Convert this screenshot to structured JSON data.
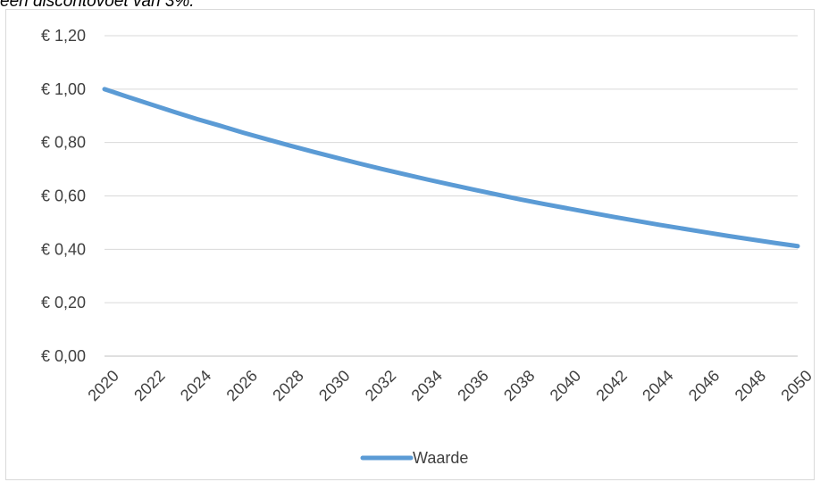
{
  "caption": "een discontovoet van 3%.",
  "chart_data": {
    "type": "line",
    "x": [
      2020,
      2021,
      2022,
      2023,
      2024,
      2025,
      2026,
      2027,
      2028,
      2029,
      2030,
      2031,
      2032,
      2033,
      2034,
      2035,
      2036,
      2037,
      2038,
      2039,
      2040,
      2041,
      2042,
      2043,
      2044,
      2045,
      2046,
      2047,
      2048,
      2049,
      2050
    ],
    "x_tick_labels": [
      "2020",
      "2022",
      "2024",
      "2026",
      "2028",
      "2030",
      "2032",
      "2034",
      "2036",
      "2038",
      "2040",
      "2042",
      "2044",
      "2046",
      "2048",
      "2050"
    ],
    "y_tick_labels": [
      "€ 0,00",
      "€ 0,20",
      "€ 0,40",
      "€ 0,60",
      "€ 0,80",
      "€ 1,00",
      "€ 1,20"
    ],
    "ylim": [
      0,
      1.2
    ],
    "y_step": 0.2,
    "grid": "horizontal",
    "legend_position": "bottom",
    "series": [
      {
        "name": "Waarde",
        "color": "#5b9bd5",
        "values": [
          1.0,
          0.971,
          0.943,
          0.915,
          0.888,
          0.863,
          0.837,
          0.813,
          0.789,
          0.766,
          0.744,
          0.722,
          0.701,
          0.681,
          0.661,
          0.642,
          0.623,
          0.605,
          0.587,
          0.57,
          0.554,
          0.538,
          0.522,
          0.507,
          0.492,
          0.478,
          0.464,
          0.45,
          0.437,
          0.424,
          0.412
        ]
      }
    ]
  }
}
